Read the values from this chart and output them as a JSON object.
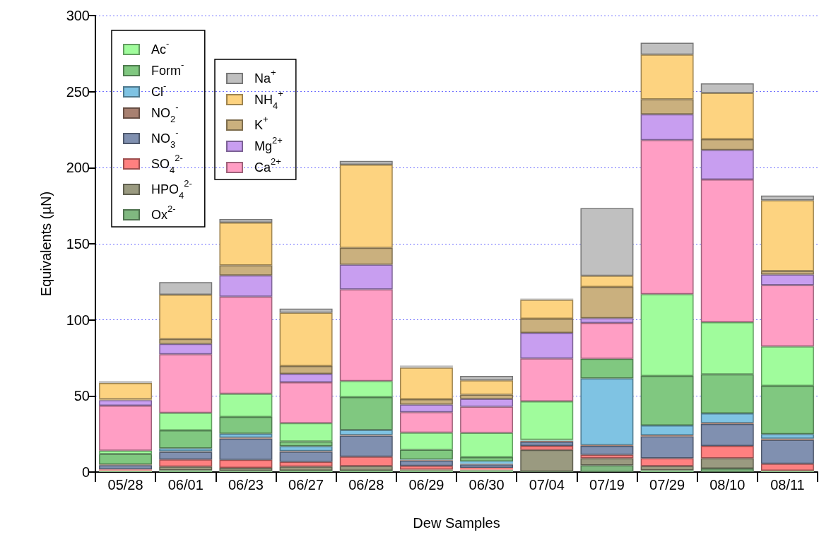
{
  "chart_data": {
    "type": "bar",
    "stacked": true,
    "xlabel": "Dew Samples",
    "ylabel": "Equivalents (µN)",
    "categories": [
      "05/28",
      "06/01",
      "06/23",
      "06/27",
      "06/28",
      "06/29",
      "06/30",
      "07/04",
      "07/19",
      "07/29",
      "08/10",
      "08/11"
    ],
    "ylim": [
      0,
      300
    ],
    "yticks": [
      0,
      50,
      100,
      150,
      200,
      250,
      300
    ],
    "grid": "y",
    "legend": "top left",
    "series": [
      {
        "name": "Ox$^{2-}$",
        "color": "#80b880",
        "values": [
          0.6,
          1.2,
          0.8,
          0.9,
          0.9,
          0.9,
          1.1,
          0.3,
          4.4,
          1.2,
          2.3,
          0.6
        ]
      },
      {
        "name": "HPO$_{4}$$^{2-}$",
        "color": "#9a9a80",
        "values": [
          0.5,
          2.4,
          2,
          2.7,
          3.1,
          0.7,
          0.5,
          14.2,
          4.7,
          2.7,
          6.8,
          0.3
        ]
      },
      {
        "name": "SO$_{4}$$^{2-}$",
        "color": "#ff8080",
        "values": [
          0.6,
          4.6,
          5.2,
          3.1,
          6.1,
          2.5,
          1.2,
          2.7,
          2.3,
          5.2,
          8.1,
          4.6
        ]
      },
      {
        "name": "NO$_{3}$$^{-}$",
        "color": "#8090b0",
        "values": [
          2.8,
          5,
          13.9,
          6.6,
          13.8,
          3.4,
          2.2,
          2.8,
          5.8,
          14.3,
          14.4,
          15.6
        ]
      },
      {
        "name": "NO$_{2}$$^{-}$",
        "color": "#a88070",
        "values": [
          0.5,
          0.4,
          0.7,
          0.5,
          0.5,
          0.5,
          0.5,
          0.6,
          0.6,
          0.7,
          0.7,
          0.8
        ]
      },
      {
        "name": "Cl$^{-}$",
        "color": "#7fc3e3",
        "values": [
          null,
          1.9,
          2.6,
          3.1,
          3.2,
          0.3,
          1.5,
          0.2,
          43.7,
          6.5,
          6.3,
          3.1
        ]
      },
      {
        "name": "Form$^{-}$",
        "color": "#80c880",
        "values": [
          6.9,
          11.9,
          11,
          3.2,
          21.6,
          6.3,
          2.7,
          0.4,
          12.9,
          32.5,
          25.6,
          31.6
        ]
      },
      {
        "name": "Ac$^{-}$",
        "color": "#a0fc9c",
        "values": [
          2.1,
          11.5,
          15.2,
          12.1,
          10.6,
          11.3,
          16.1,
          25.2,
          null,
          53.8,
          34.2,
          25.9
        ]
      },
      {
        "name": "Ca$^{2+}$",
        "color": "#ff9ec4",
        "values": [
          29.7,
          38.5,
          63.9,
          26.8,
          60.2,
          13.4,
          17.2,
          28.3,
          23.6,
          101.3,
          93.9,
          40.3
        ]
      },
      {
        "name": "Mg$^{2+}$",
        "color": "#c89ef0",
        "values": [
          3.5,
          6.8,
          13.9,
          5.5,
          16.3,
          5.1,
          5.1,
          16.8,
          3.1,
          16.9,
          19.4,
          7
        ]
      },
      {
        "name": "K$^{+}$",
        "color": "#cab07e",
        "values": [
          0.8,
          3.2,
          6.6,
          5.2,
          11,
          3.4,
          2.7,
          9.3,
          20.6,
          9.9,
          7,
          2.3
        ]
      },
      {
        "name": "NH$_{4}$$^{+}$",
        "color": "#fdd380",
        "values": [
          10.5,
          29.2,
          28.1,
          35,
          54.7,
          20.8,
          9.5,
          12.4,
          7.3,
          29.3,
          30.5,
          46.5
        ]
      },
      {
        "name": "Na$^{+}$",
        "color": "#c0c0c0",
        "values": [
          1.3,
          8.2,
          2.3,
          2.7,
          2.4,
          1.4,
          2.8,
          0.8,
          44.4,
          7.8,
          6.2,
          3.1
        ]
      }
    ]
  }
}
